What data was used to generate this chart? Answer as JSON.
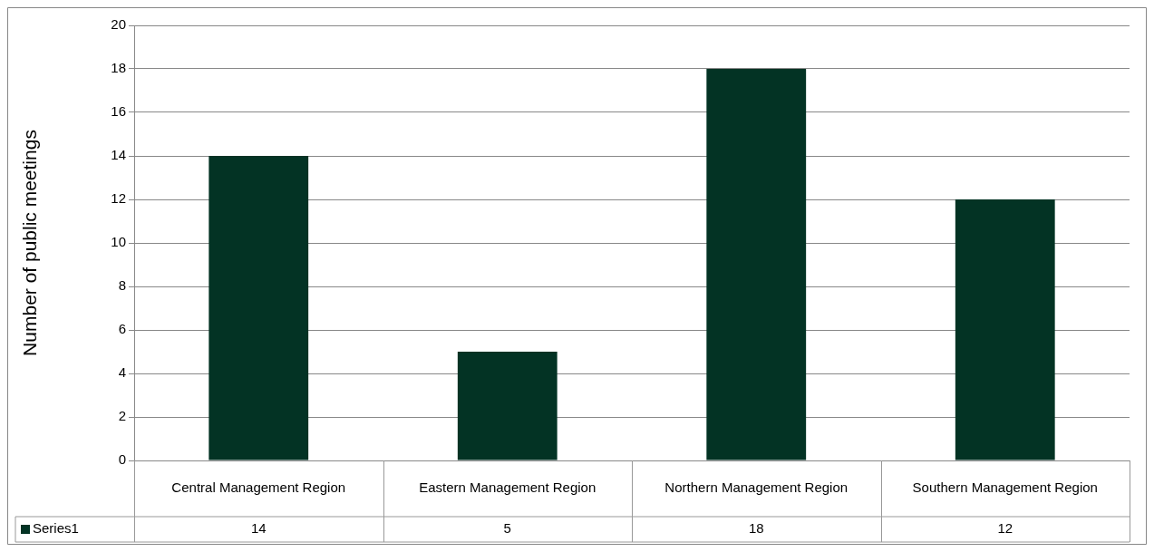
{
  "chart_data": {
    "type": "bar",
    "ylabel": "Number of public meetings",
    "categories": [
      "Central Management Region",
      "Eastern Management Region",
      "Northern Management Region",
      "Southern Management Region"
    ],
    "series": [
      {
        "name": "Series1",
        "color": "#033324",
        "values": [
          14,
          5,
          18,
          12
        ]
      }
    ],
    "ylim": [
      0,
      20
    ],
    "yticks": [
      0,
      2,
      4,
      6,
      8,
      10,
      12,
      14,
      16,
      18,
      20
    ],
    "grid": "y",
    "legend": "bottom",
    "data_labels": true
  }
}
